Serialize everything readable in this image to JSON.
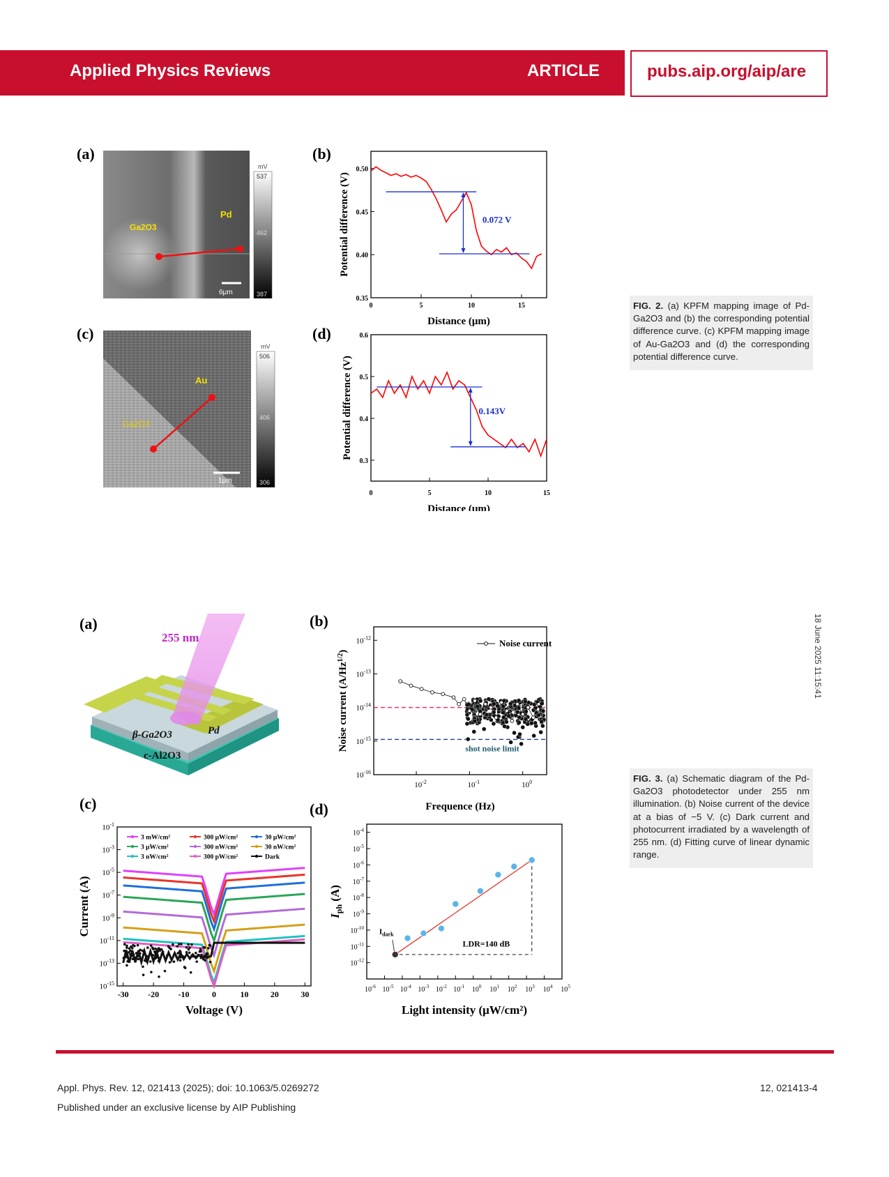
{
  "header": {
    "journal": "Applied Physics Reviews",
    "article": "ARTICLE",
    "url": "pubs.aip.org/aip/are"
  },
  "side_date": "18 June 2025 11:15:41",
  "fig2": {
    "caption": "(a) KPFM mapping image of Pd-Ga2O3 and (b) the corresponding potential difference curve. (c) KPFM mapping image of Au-Ga2O3 and (d) the corresponding potential difference curve.",
    "caption_label": "FIG. 2.",
    "a": {
      "label": "(a)",
      "material": "Ga2O3",
      "metal": "Pd",
      "scalebar": "6μm",
      "colorbar": {
        "unit": "mV",
        "max": "537",
        "mid": "462",
        "min": "387"
      }
    },
    "b": {
      "label": "(b)",
      "annotation": "0.072 V"
    },
    "c": {
      "label": "(c)",
      "material": "Ga2O3",
      "metal": "Au",
      "scalebar": "1μm",
      "colorbar": {
        "unit": "mV",
        "max": "506",
        "mid": "406",
        "min": "306"
      }
    },
    "d": {
      "label": "(d)",
      "annotation": "0.143V"
    }
  },
  "fig3": {
    "caption_label": "FIG. 3.",
    "caption": "(a) Schematic diagram of the Pd-Ga2O3 photodetector under 255 nm illumination. (b) Noise current of the device at a bias of −5 V. (c) Dark current and photocurrent irradiated by a wavelength of 255 nm. (d) Fitting curve of linear dynamic range.",
    "a": {
      "label": "(a)",
      "wavelength": "255 nm",
      "layer1": "β-Ga2O3",
      "layer2": "c-Al2O3",
      "electrode": "Pd"
    },
    "b": {
      "label": "(b)",
      "legend": "Noise current",
      "shot": "shot noise limit"
    },
    "c": {
      "label": "(c)"
    },
    "d": {
      "label": "(d)",
      "idark": "I",
      "idark_sub": "dark",
      "ldr": "LDR=140 dB"
    }
  },
  "footer": {
    "citation": "Appl. Phys. Rev. 12, 021413 (2025); doi: 10.1063/5.0269272",
    "license": "Published under an exclusive license by AIP Publishing",
    "page": "12, 021413-4"
  },
  "chart_data": [
    {
      "type": "line",
      "panel": "fig2b",
      "xlabel": "Distance (μm)",
      "ylabel": "Potential difference (V)",
      "xlim": [
        0,
        17.5
      ],
      "ylim": [
        0.35,
        0.52
      ],
      "xticks": [
        0,
        5,
        10,
        15
      ],
      "yticks": [
        0.35,
        0.4,
        0.45,
        0.5
      ],
      "series": [
        {
          "color": "#ff0000",
          "x": [
            0,
            0.5,
            1,
            1.5,
            2,
            2.5,
            3,
            3.5,
            4,
            4.5,
            5,
            5.5,
            6,
            6.5,
            7,
            7.5,
            8,
            8.5,
            9,
            9.5,
            10,
            10.5,
            11,
            11.5,
            12,
            12.5,
            13,
            13.5,
            14,
            14.5,
            15,
            15.5,
            16,
            16.5,
            17
          ],
          "y": [
            0.497,
            0.502,
            0.498,
            0.495,
            0.492,
            0.494,
            0.491,
            0.493,
            0.49,
            0.492,
            0.489,
            0.485,
            0.476,
            0.465,
            0.452,
            0.438,
            0.447,
            0.452,
            0.462,
            0.472,
            0.458,
            0.428,
            0.41,
            0.404,
            0.4,
            0.406,
            0.403,
            0.408,
            0.4,
            0.402,
            0.396,
            0.392,
            0.384,
            0.398,
            0.401
          ]
        }
      ],
      "annotation": {
        "text": "0.072 V",
        "upper": 0.473,
        "lower": 0.401
      }
    },
    {
      "type": "line",
      "panel": "fig2d",
      "xlabel": "Distance (μm)",
      "ylabel": "Potential difference (V)",
      "xlim": [
        0,
        15
      ],
      "ylim": [
        0.25,
        0.6
      ],
      "xticks": [
        0,
        5,
        10,
        15
      ],
      "yticks": [
        0.3,
        0.4,
        0.5,
        0.6
      ],
      "series": [
        {
          "color": "#ff0000",
          "x": [
            0,
            0.5,
            1,
            1.5,
            2,
            2.5,
            3,
            3.5,
            4,
            4.5,
            5,
            5.5,
            6,
            6.5,
            7,
            7.5,
            8,
            8.5,
            9,
            9.5,
            10,
            10.5,
            11,
            11.5,
            12,
            12.5,
            13,
            13.5,
            14,
            14.5,
            15
          ],
          "y": [
            0.46,
            0.47,
            0.45,
            0.49,
            0.46,
            0.48,
            0.45,
            0.5,
            0.47,
            0.49,
            0.46,
            0.5,
            0.48,
            0.51,
            0.47,
            0.49,
            0.48,
            0.45,
            0.42,
            0.38,
            0.36,
            0.35,
            0.34,
            0.33,
            0.35,
            0.33,
            0.34,
            0.32,
            0.35,
            0.31,
            0.35
          ]
        }
      ],
      "annotation": {
        "text": "0.143V",
        "upper": 0.475,
        "lower": 0.332
      }
    },
    {
      "type": "scatter",
      "panel": "fig3b",
      "xlabel": "Frequence (Hz)",
      "ylabel": "Noise current (A/Hz^1/2)",
      "xscale": "log",
      "yscale": "log",
      "xlim_exp": [
        -2.8,
        0.45
      ],
      "ylim_exp": [
        -16,
        -11.6
      ],
      "xticks_exp": [
        -2,
        -1,
        0
      ],
      "yticks_exp": [
        -16,
        -15,
        -14,
        -13,
        -12
      ],
      "series": [
        {
          "name": "Noise current",
          "color": "#000000",
          "x_exp": [
            -2.3,
            -2.1,
            -1.9,
            -1.7,
            -1.5,
            -1.3,
            -1.2,
            -1.1,
            -1.0,
            -0.9,
            -0.8,
            -0.7,
            -0.6,
            -0.5,
            -0.4,
            -0.3,
            -0.2,
            -0.1,
            0.0,
            0.1,
            0.2,
            0.3
          ],
          "y_exp": [
            -13.22,
            -13.35,
            -13.45,
            -13.55,
            -13.6,
            -13.7,
            -13.9,
            -13.75,
            -14.1,
            -13.8,
            -14.2,
            -13.9,
            -14.0,
            -14.3,
            -13.85,
            -14.1,
            -14.4,
            -13.9,
            -14.2,
            -14.0,
            -14.3,
            -13.9
          ]
        }
      ],
      "reference_lines": [
        {
          "y_exp": -14.0,
          "color": "#e8336d"
        },
        {
          "y_exp": -14.95,
          "color": "#1f3c88",
          "label": "shot noise limit"
        }
      ]
    },
    {
      "type": "line",
      "panel": "fig3c",
      "xlabel": "Voltage (V)",
      "ylabel": "Current (A)",
      "yscale": "log",
      "xlim": [
        -32,
        32
      ],
      "ylim_exp": [
        -15,
        -1
      ],
      "xticks": [
        -30,
        -20,
        -10,
        0,
        10,
        20,
        30
      ],
      "yticks_exp": [
        -15,
        -13,
        -11,
        -9,
        -7,
        -5,
        -3,
        -1
      ],
      "series": [
        {
          "name": "3 mW/cm²",
          "color": "#e040fb",
          "level_exp": -4.6
        },
        {
          "name": "300 μW/cm²",
          "color": "#e8342a",
          "level_exp": -5.2
        },
        {
          "name": "30 μW/cm²",
          "color": "#1e6fd9",
          "level_exp": -5.9
        },
        {
          "name": "3  μW/cm²",
          "color": "#2aa55a",
          "level_exp": -6.9
        },
        {
          "name": "300 nW/cm²",
          "color": "#b36bd8",
          "level_exp": -8.2
        },
        {
          "name": "30 nW/cm²",
          "color": "#d4a017",
          "level_exp": -9.6
        },
        {
          "name": "3  nW/cm²",
          "color": "#1fc2c2",
          "level_exp": -10.6
        },
        {
          "name": "300 pW/cm²",
          "color": "#e05fbf",
          "level_exp": -10.9
        },
        {
          "name": "Dark",
          "color": "#111111",
          "level_exp": -11.3
        }
      ]
    },
    {
      "type": "scatter",
      "panel": "fig3d",
      "xlabel": "Light intensity (μW/cm²)",
      "ylabel": "I_ph (A)",
      "xscale": "log",
      "yscale": "log",
      "xlim_exp": [
        -6,
        5
      ],
      "ylim_exp": [
        -13,
        -3.5
      ],
      "xticks_exp": [
        -6,
        -5,
        -4,
        -3,
        -2,
        -1,
        0,
        1,
        2,
        3,
        4,
        5
      ],
      "yticks_exp": [
        -12,
        -11,
        -10,
        -9,
        -8,
        -7,
        -6,
        -5,
        -4
      ],
      "series": [
        {
          "color": "#5ab4e8",
          "x_exp": [
            -4.4,
            -3.7,
            -2.8,
            -1.8,
            -1.0,
            0.4,
            1.4,
            2.3,
            3.3
          ],
          "y_exp": [
            -11.5,
            -10.5,
            -10.2,
            -9.9,
            -8.4,
            -7.6,
            -6.6,
            -6.1,
            -5.7
          ]
        }
      ],
      "fit": {
        "x_exp": [
          -4.4,
          3.3
        ],
        "y_exp": [
          -11.5,
          -5.7
        ],
        "color": "#e8342a"
      }
    }
  ]
}
